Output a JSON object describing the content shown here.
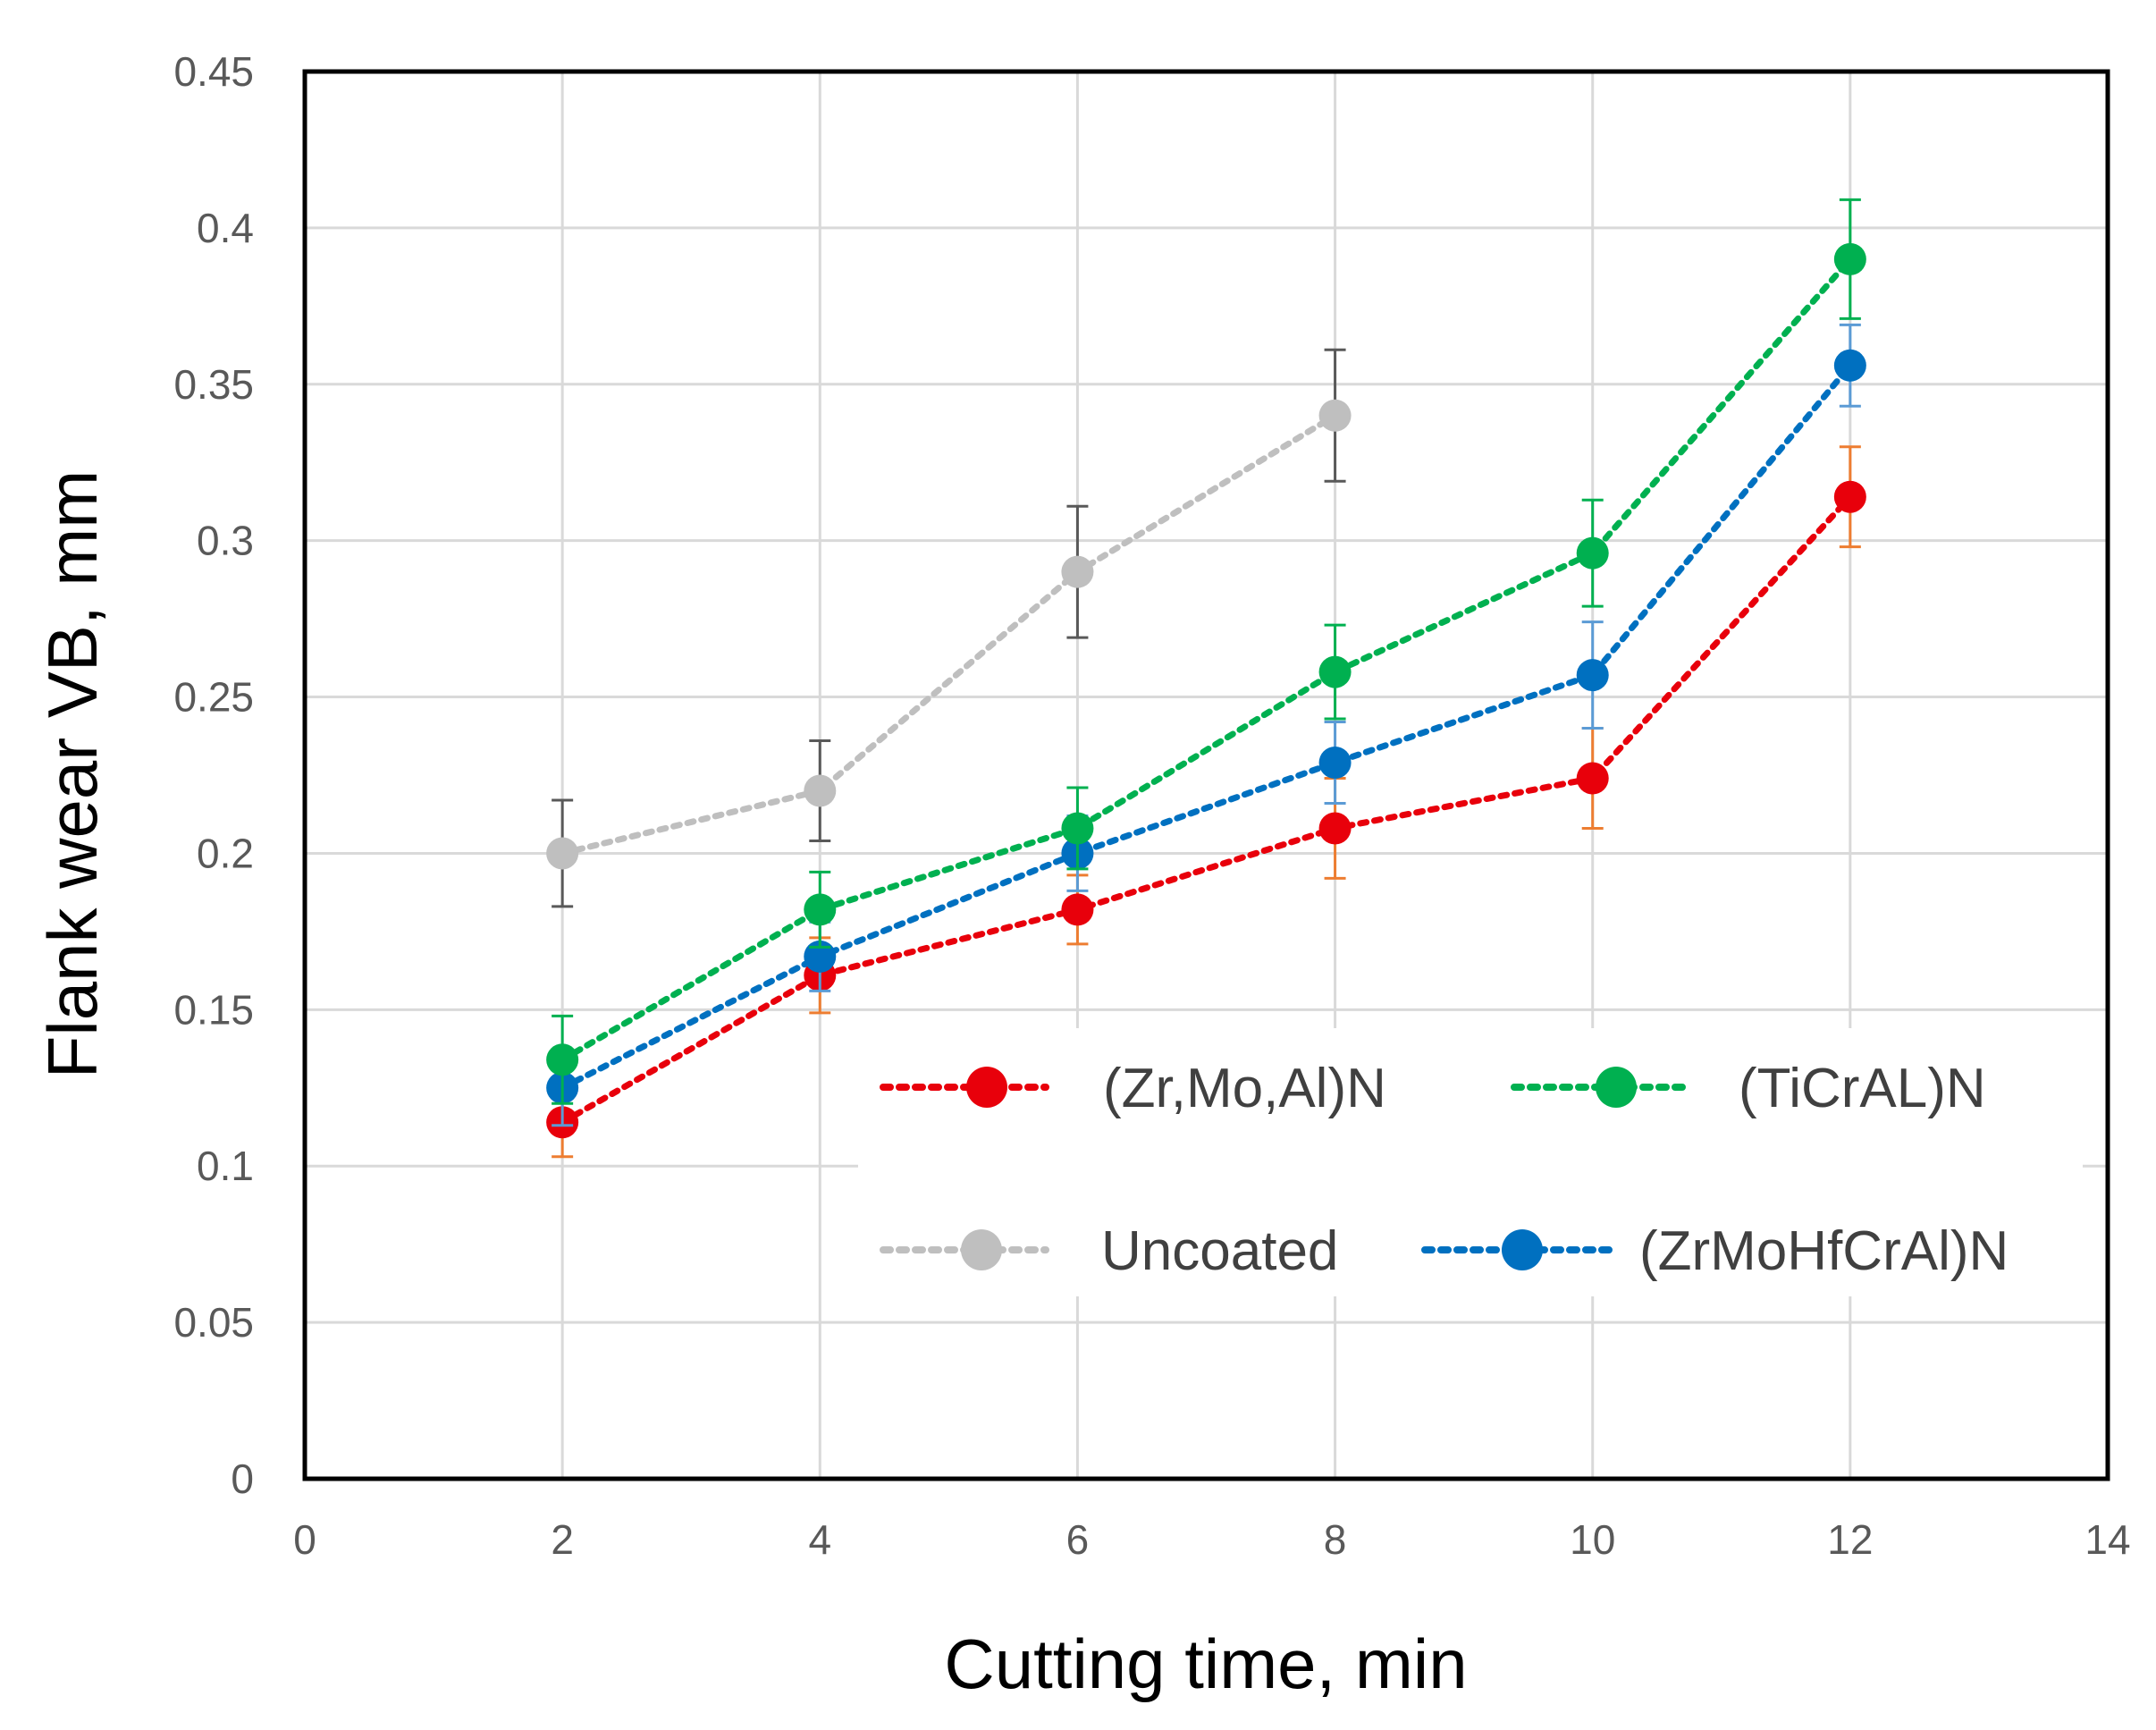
{
  "chart_data": {
    "type": "line",
    "title": "",
    "xlabel": "Cutting time, min",
    "ylabel": "Flank wear VB, mm",
    "xlim": [
      0,
      14
    ],
    "ylim": [
      0,
      0.45
    ],
    "x_ticks": [
      "0",
      "2",
      "4",
      "6",
      "8",
      "10",
      "12",
      "14"
    ],
    "y_ticks": [
      "0",
      "0.05",
      "0.1",
      "0.15",
      "0.2",
      "0.25",
      "0.3",
      "0.35",
      "0.4",
      "0.45"
    ],
    "grid": true,
    "legend_position": "inside-bottom-right",
    "series": [
      {
        "name": "(Zr,Mo,Al)N",
        "color": "#e8000b",
        "error_color": "#ed7d31",
        "x": [
          2,
          4,
          6,
          8,
          10,
          12
        ],
        "y": [
          0.114,
          0.161,
          0.182,
          0.208,
          0.224,
          0.314
        ],
        "error": [
          0.011,
          0.012,
          0.011,
          0.016,
          0.016,
          0.016
        ]
      },
      {
        "name": "(TiCrAL)N",
        "color": "#00b050",
        "error_color": "#00b050",
        "x": [
          2,
          4,
          6,
          8,
          10,
          12
        ],
        "y": [
          0.134,
          0.182,
          0.208,
          0.258,
          0.296,
          0.39
        ],
        "error": [
          0.014,
          0.012,
          0.013,
          0.015,
          0.017,
          0.019
        ]
      },
      {
        "name": "Uncoated",
        "color": "#bfbfbf",
        "error_color": "#595959",
        "x": [
          2,
          4,
          6,
          8
        ],
        "y": [
          0.2,
          0.22,
          0.29,
          0.34
        ],
        "error": [
          0.017,
          0.016,
          0.021,
          0.021
        ]
      },
      {
        "name": "(ZrMoHfCrAl)N",
        "color": "#0070c0",
        "error_color": "#5b9bd5",
        "x": [
          2,
          4,
          6,
          8,
          10,
          12
        ],
        "y": [
          0.125,
          0.167,
          0.2,
          0.229,
          0.257,
          0.356
        ],
        "error": [
          0.012,
          0.011,
          0.012,
          0.013,
          0.017,
          0.013
        ]
      }
    ]
  }
}
